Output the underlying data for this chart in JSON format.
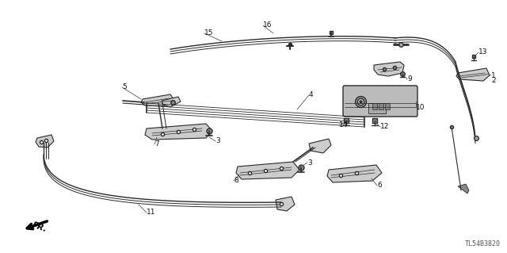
{
  "bg_color": "#ffffff",
  "line_color": "#2a2a2a",
  "text_color": "#111111",
  "catalog_number": "TL54B3820",
  "figsize": [
    6.4,
    3.19
  ],
  "dpi": 100
}
